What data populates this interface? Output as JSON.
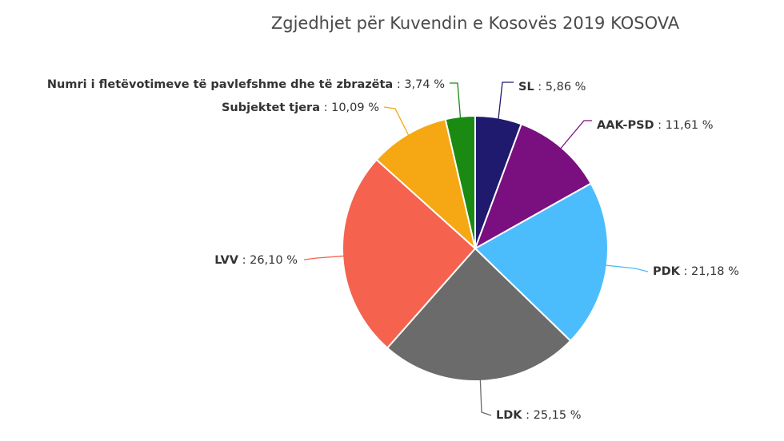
{
  "chart_data": {
    "type": "pie",
    "title": "Zgjedhjet për Kuvendin e Kosovës 2019 KOSOVA",
    "slices": [
      {
        "name": "SL",
        "value": 5.86,
        "value_label": "5,86 %",
        "color": "#1f1a6e"
      },
      {
        "name": "AAK-PSD",
        "value": 11.61,
        "value_label": "11,61 %",
        "color": "#7a0f80"
      },
      {
        "name": "PDK",
        "value": 21.18,
        "value_label": "21,18 %",
        "color": "#4cbdfc"
      },
      {
        "name": "LDK",
        "value": 25.15,
        "value_label": "25,15 %",
        "color": "#6b6b6b"
      },
      {
        "name": "LVV",
        "value": 26.1,
        "value_label": "26,10 %",
        "color": "#f5624e"
      },
      {
        "name": "Subjektet tjera",
        "value": 10.09,
        "value_label": "10,09 %",
        "color": "#f5a814"
      },
      {
        "name": "Numri i fletëvotimeve të pavlefshme dhe të zbrazëta",
        "value": 3.74,
        "value_label": "3,74 %",
        "color": "#1a8a12"
      }
    ]
  }
}
